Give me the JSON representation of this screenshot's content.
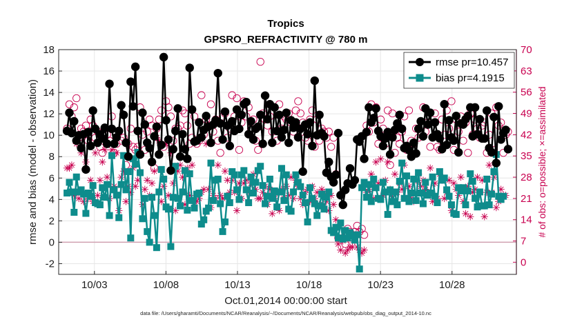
{
  "chart_data": {
    "type": "line",
    "title": "Tropics",
    "subtitle": "GPSRO_REFRACTIVITY @ 780 m",
    "xlabel": "Oct.01,2014 00:00:00 start",
    "ylabel": "rmse and bias (model - observation)",
    "ylabel_right": "# of obs: o=possible; ×=assimilated",
    "footnote": "data file: /Users/gharamti/Documents/NCAR/Reanalysis/~/Documents/NCAR/Reanalysis/webpub/obs_diag_output_2014-10.nc",
    "xlim": [
      0.5,
      32.5
    ],
    "ylim": [
      -3,
      18
    ],
    "ylim_right": [
      -4,
      70
    ],
    "x_tick_values": [
      3,
      8,
      13,
      18,
      23,
      28
    ],
    "x_tick_labels": [
      "10/03",
      "10/08",
      "10/13",
      "10/18",
      "10/23",
      "10/28"
    ],
    "y_ticks": [
      "-2",
      "0",
      "2",
      "4",
      "6",
      "8",
      "10",
      "12",
      "14",
      "16",
      "18"
    ],
    "y_ticks_right": [
      "0",
      "7",
      "14",
      "21",
      "28",
      "35",
      "42",
      "49",
      "56",
      "63",
      "70"
    ],
    "legend_position": "top-right",
    "grid": true,
    "colors": {
      "rmse": "#000000",
      "bias": "#0e8c8c",
      "obs": "#c8004f",
      "zero_line": "#d0a0b0"
    },
    "series": [
      {
        "name": "rmse",
        "label": "rmse pr=10.457",
        "values": [
          10.4,
          12.1,
          10.2,
          11.3,
          9.5,
          10.0,
          8.8,
          10.1,
          6.8,
          10.3,
          9.0,
          12.3,
          10.6,
          9.3,
          10.1,
          9.7,
          10.7,
          9.2,
          14.8,
          10.6,
          9.2,
          9.8,
          10.4,
          12.8,
          11.9,
          9.3,
          8.0,
          15.0,
          12.7,
          16.4,
          10.4,
          8.2,
          12.1,
          11.0,
          9.3,
          8.8,
          7.5,
          9.9,
          10.8,
          8.2,
          9.1,
          17.3,
          11.4,
          9.6,
          6.7,
          8.7,
          10.4,
          12.5,
          8.0,
          10.1,
          8.7,
          7.8,
          16.3,
          12.4,
          9.4,
          9.5,
          11.2,
          9.8,
          10.5,
          11.8,
          10.8,
          9.3,
          11.0,
          11.4,
          15.8,
          11.1,
          9.6,
          12.2,
          10.9,
          9.0,
          11.3,
          10.4,
          12.4,
          10.6,
          11.9,
          12.9,
          13.1,
          10.1,
          11.3,
          9.6,
          10.6,
          10.8,
          11.9,
          9.2,
          13.7,
          11.5,
          12.9,
          9.3,
          12.6,
          10.4,
          11.9,
          9.8,
          10.5,
          12.1,
          9.3,
          11.4,
          10.7,
          11.2,
          9.8,
          10.6,
          6.6,
          11.0,
          10.1,
          11.2,
          9.0,
          15.1,
          10.0,
          11.9,
          10.2,
          9.9,
          6.5,
          7.5,
          6.1,
          5.6,
          6.3,
          10.2,
          4.4,
          3.5,
          4.9,
          5.5,
          6.9,
          5.4,
          5.8,
          9.6,
          9.4,
          9.9,
          7.8,
          10.3,
          12.6,
          11.2,
          11.6,
          12.5,
          10.4,
          9.9,
          9.0,
          9.7,
          10.3,
          8.2,
          9.8,
          10.5,
          11.1,
          11.9,
          10.6,
          8.8,
          9.0,
          8.6,
          8.0,
          9.3,
          8.3,
          10.6,
          11.3,
          9.9,
          12.5,
          11.0,
          12.1,
          9.8,
          11.2,
          10.1,
          9.7,
          8.7,
          12.9,
          9.1,
          11.4,
          9.8,
          9.5,
          11.8,
          8.4,
          11.1,
          11.0,
          11.5,
          11.8,
          12.6,
          9.9,
          12.6,
          10.1,
          11.5,
          9.7,
          9.7,
          12.3,
          8.8,
          8.4,
          11.7,
          7.4,
          12.7,
          9.6,
          10.2,
          10.5,
          8.7
        ]
      },
      {
        "name": "bias",
        "label": "bias pr=4.1915",
        "values": [
          4.6,
          5.6,
          4.7,
          2.8,
          6.1,
          4.7,
          4.9,
          4.5,
          2.7,
          4.6,
          4.3,
          5.3,
          3.7,
          3.6,
          3.5,
          5.1,
          4.2,
          5.4,
          2.5,
          8.1,
          4.9,
          4.4,
          2.3,
          5.4,
          8.1,
          4.9,
          6.6,
          0.4,
          7.8,
          7.3,
          8.4,
          6.5,
          2.2,
          4.1,
          1.0,
          0.0,
          4.2,
          2.5,
          -0.5,
          4.7,
          6.8,
          5.9,
          3.3,
          3.1,
          -0.4,
          4.2,
          7.1,
          4.1,
          3.4,
          4.7,
          6.7,
          3.0,
          6.4,
          3.9,
          3.2,
          4.5,
          4.6,
          1.7,
          2.1,
          2.9,
          3.2,
          7.4,
          3.9,
          5.8,
          5.9,
          3.6,
          1.0,
          1.9,
          4.3,
          3.7,
          6.6,
          6.3,
          4.9,
          4.0,
          6.3,
          6.7,
          4.9,
          3.7,
          6.1,
          4.6,
          5.6,
          6.7,
          7.1,
          5.3,
          3.6,
          4.3,
          5.9,
          4.1,
          4.8,
          3.3,
          4.7,
          6.9,
          3.9,
          6.3,
          3.1,
          2.9,
          4.7,
          6.3,
          5.6,
          5.2,
          4.4,
          3.7,
          1.9,
          5.1,
          4.1,
          3.6,
          2.5,
          3.4,
          4.5,
          3.1,
          4.2,
          4.7,
          1.1,
          0.9,
          1.4,
          0.4,
          1.8,
          0.3,
          1.1,
          0.4,
          0.9,
          0.6,
          0.2,
          0.7,
          -2.5,
          5.1,
          5.6,
          4.2,
          5.4,
          3.8,
          5.9,
          5.1,
          4.1,
          4.0,
          5.6,
          4.7,
          2.6,
          4.9,
          3.8,
          4.7,
          3.5,
          5.7,
          7.4,
          4.1,
          6.2,
          3.8,
          4.6,
          5.9,
          3.9,
          6.5,
          4.6,
          3.6,
          5.6,
          4.4,
          4.6,
          6.1,
          4.3,
          3.7,
          6.6,
          5.8,
          6.0,
          4.9,
          4.3,
          3.5,
          2.7,
          2.6,
          5.1,
          4.8,
          5.1,
          3.5,
          4.8,
          6.4,
          5.7,
          4.1,
          3.3,
          4.7,
          3.4,
          3.4,
          5.9,
          3.5,
          4.5,
          6.6,
          8.2,
          4.3,
          4.0,
          4.3
        ]
      },
      {
        "name": "obs possible",
        "values": [
          44,
          52,
          48,
          51,
          54,
          41,
          44,
          43,
          45,
          40,
          47,
          45,
          41,
          43,
          38,
          36,
          44,
          42,
          40,
          48,
          36,
          39,
          43,
          40,
          41,
          32,
          39,
          44,
          38,
          37,
          38,
          51,
          42,
          37,
          43,
          47,
          45,
          31,
          44,
          47,
          50,
          38,
          53,
          51,
          48,
          40,
          44,
          44,
          45,
          50,
          49,
          45,
          39,
          41,
          48,
          39,
          40,
          55,
          42,
          47,
          45,
          52,
          43,
          47,
          40,
          36,
          48,
          49,
          41,
          44,
          55,
          48,
          54,
          37,
          46,
          53,
          48,
          51,
          44,
          47,
          40,
          37,
          66,
          49,
          47,
          45,
          48,
          43,
          51,
          40,
          52,
          44,
          48,
          47,
          49,
          46,
          43,
          50,
          53,
          49,
          46,
          41,
          40,
          47,
          50,
          38,
          47,
          40,
          44,
          43,
          41,
          43,
          38,
          41,
          29,
          8,
          10,
          8,
          6,
          11,
          10,
          9,
          10,
          12,
          10,
          11,
          9,
          45,
          43,
          52,
          46,
          51,
          39,
          47,
          44,
          39,
          50,
          32,
          49,
          36,
          41,
          39,
          43,
          48,
          37,
          50,
          40,
          39,
          44,
          41,
          42,
          51,
          43,
          46,
          38,
          41,
          49,
          38,
          37,
          47,
          42,
          50,
          44,
          53,
          37,
          47,
          43,
          48,
          40,
          46,
          36,
          49,
          42,
          47,
          44,
          41,
          45,
          46,
          36,
          42,
          49,
          37,
          51,
          45,
          46,
          36,
          42,
          43
        ]
      },
      {
        "name": "obs assimilated",
        "values": [
          31,
          31,
          32,
          22,
          39,
          21,
          36,
          20,
          33,
          21,
          27,
          20,
          36,
          22,
          27,
          33,
          37,
          28,
          21,
          37,
          25,
          36,
          17,
          28,
          30,
          20,
          25,
          23,
          31,
          25,
          27,
          36,
          19,
          24,
          27,
          22,
          26,
          30,
          41,
          40,
          20,
          25,
          39,
          22,
          36,
          26,
          17,
          30,
          32,
          28,
          19,
          31,
          22,
          32,
          20,
          20,
          21,
          23,
          24,
          39,
          24,
          18,
          22,
          21,
          32,
          22,
          21,
          30,
          27,
          23,
          27,
          23,
          17,
          26,
          21,
          26,
          27,
          23,
          26,
          29,
          24,
          21,
          21,
          23,
          25,
          19,
          24,
          16,
          21,
          23,
          17,
          24,
          21,
          25,
          22,
          28,
          21,
          27,
          25,
          21,
          19,
          23,
          24,
          20,
          25,
          21,
          23,
          19,
          24,
          23,
          20,
          17,
          22,
          19,
          14,
          6,
          4,
          7,
          3,
          4,
          5,
          5,
          7,
          5,
          4,
          3,
          4,
          23,
          24,
          29,
          21,
          33,
          26,
          34,
          22,
          27,
          33,
          24,
          21,
          29,
          23,
          26,
          24,
          32,
          21,
          25,
          21,
          20,
          27,
          29,
          25,
          27,
          24,
          23,
          31,
          20,
          26,
          21,
          29,
          27,
          21,
          23,
          27,
          17,
          26,
          24,
          22,
          28,
          20,
          16,
          25,
          15,
          23,
          24,
          28,
          23,
          27,
          15,
          23,
          32,
          23,
          28,
          18,
          20,
          24,
          22,
          22
        ]
      }
    ]
  }
}
